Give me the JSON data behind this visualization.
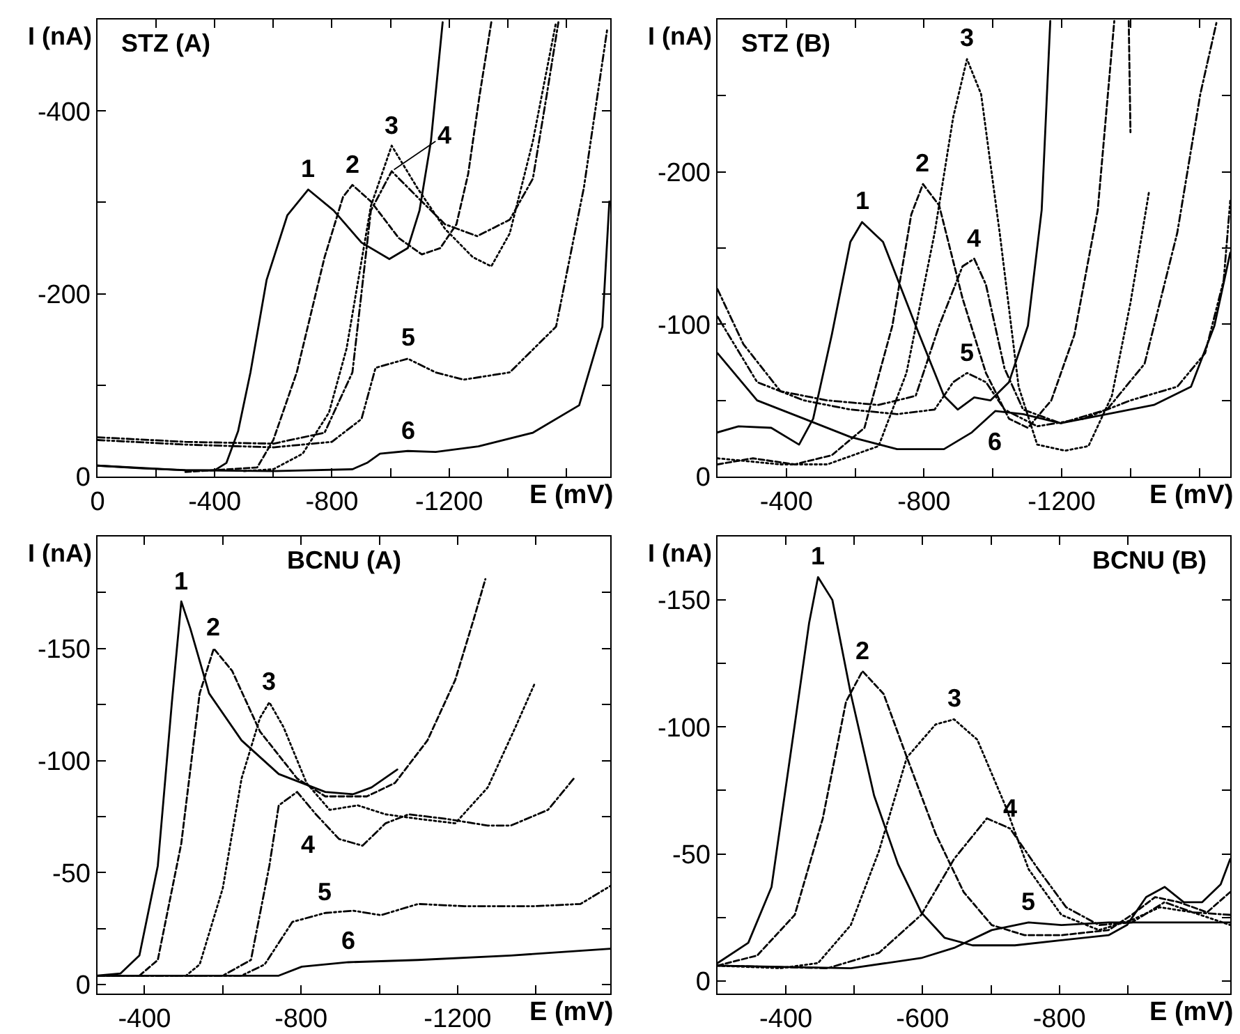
{
  "chart_data": [
    {
      "type": "line",
      "title": "STZ (A)",
      "xlabel": "E (mV)",
      "ylabel": "I (nA)",
      "xlim": [
        0,
        -1750
      ],
      "ylim": [
        0,
        -500
      ],
      "xticks": [
        0,
        {
          "value": -200,
          "label": null
        },
        -400,
        {
          "value": -600,
          "label": null
        },
        -800,
        {
          "value": -1000,
          "label": null
        },
        -1200,
        {
          "value": -1400,
          "label": null
        },
        {
          "value": -1600,
          "label": null
        }
      ],
      "yticks": [
        0,
        {
          "value": -100,
          "label": null
        },
        -200,
        {
          "value": -300,
          "label": null
        },
        -400
      ],
      "grid": false,
      "series": [
        {
          "color": "#000000",
          "line_style": "solid",
          "x": [
            0,
            -150,
            -300,
            -400,
            -440,
            -480,
            -522,
            -577,
            -648,
            -719,
            -806,
            -901,
            -996,
            -1059,
            -1099,
            -1138,
            -1178
          ],
          "values": [
            -12,
            -9,
            -7,
            -7,
            -15,
            -50,
            -114,
            -215,
            -286,
            -314,
            -291,
            -256,
            -238,
            -250,
            -291,
            -367,
            -497
          ]
        },
        {
          "color": "#000000",
          "line_style": "dashed",
          "x": [
            -300,
            -450,
            -545,
            -600,
            -680,
            -775,
            -838,
            -870,
            -933,
            -1028,
            -1107,
            -1170,
            -1225,
            -1265,
            -1304,
            -1344
          ],
          "values": [
            -5,
            -8,
            -10,
            -40,
            -114,
            -240,
            -306,
            -319,
            -301,
            -261,
            -243,
            -250,
            -276,
            -331,
            -417,
            -497
          ]
        },
        {
          "color": "#000000",
          "line_style": "dotted",
          "x": [
            -500,
            -600,
            -700,
            -790,
            -850,
            -933,
            -1004,
            -1091,
            -1186,
            -1281,
            -1344,
            -1407,
            -1486,
            -1565
          ],
          "values": [
            -6,
            -8,
            -25,
            -70,
            -140,
            -296,
            -362,
            -316,
            -271,
            -240,
            -230,
            -266,
            -367,
            -497
          ]
        },
        {
          "color": "#000000",
          "line_style": "dashdot",
          "x": [
            0,
            -300,
            -600,
            -775,
            -870,
            -933,
            -1004,
            -1091,
            -1186,
            -1296,
            -1407,
            -1486,
            -1533,
            -1573
          ],
          "values": [
            -43,
            -38,
            -36,
            -48,
            -114,
            -291,
            -334,
            -306,
            -276,
            -263,
            -281,
            -326,
            -417,
            -497
          ]
        },
        {
          "color": "#000000",
          "line_style": "dashdotdot",
          "x": [
            0,
            -300,
            -600,
            -800,
            -901,
            -949,
            -1059,
            -1154,
            -1249,
            -1407,
            -1565,
            -1660,
            -1739
          ],
          "values": [
            -40,
            -35,
            -32,
            -38,
            -63,
            -119,
            -129,
            -114,
            -106,
            -114,
            -164,
            -316,
            -488
          ]
        },
        {
          "color": "#000000",
          "line_style": "solid",
          "x": [
            0,
            -300,
            -600,
            -870,
            -920,
            -964,
            -1059,
            -1154,
            -1300,
            -1486,
            -1644,
            -1723,
            -1747
          ],
          "values": [
            -12,
            -7,
            -6,
            -8,
            -15,
            -25,
            -28,
            -27,
            -33,
            -48,
            -78,
            -164,
            -301
          ]
        }
      ],
      "annotations": [
        {
          "text": "1",
          "x": -719,
          "y": -314
        },
        {
          "text": "2",
          "x": -870,
          "y": -319
        },
        {
          "text": "3",
          "x": -1004,
          "y": -362
        },
        {
          "text": "4",
          "x": -1004,
          "y": -334
        },
        {
          "text": "5",
          "x": -1059,
          "y": -129
        },
        {
          "text": "6",
          "x": -1059,
          "y": -28
        }
      ]
    },
    {
      "type": "line",
      "title": "STZ (B)",
      "xlabel": "E (mV)",
      "ylabel": "I (nA)",
      "xlim": [
        -200,
        -1690
      ],
      "ylim": [
        0,
        -300
      ],
      "xticks": [
        -400,
        {
          "value": -600,
          "label": null
        },
        -800,
        {
          "value": -1000,
          "label": null
        },
        -1200,
        {
          "value": -1400,
          "label": null
        },
        {
          "value": -1600,
          "label": null
        }
      ],
      "yticks": [
        0,
        {
          "value": -50,
          "label": null
        },
        -100,
        {
          "value": -150,
          "label": null
        },
        -200,
        {
          "value": -250,
          "label": null
        }
      ],
      "grid": false,
      "series": [
        {
          "color": "#000000",
          "line_style": "solid",
          "x": [
            -200,
            -261,
            -356,
            -437,
            -478,
            -532,
            -586,
            -620,
            -681,
            -776,
            -858,
            -898,
            -946,
            -993,
            -1047,
            -1102,
            -1142,
            -1167
          ],
          "values": [
            -29,
            -33,
            -32,
            -21,
            -38,
            -93,
            -154,
            -167,
            -154,
            -99,
            -53,
            -44,
            -52,
            -50,
            -62,
            -99,
            -175,
            -299
          ]
        },
        {
          "color": "#000000",
          "line_style": "dashed",
          "x": [
            -200,
            -302,
            -424,
            -532,
            -627,
            -708,
            -763,
            -797,
            -844,
            -912,
            -980,
            -1047,
            -1102,
            -1170,
            -1237,
            -1305,
            -1353,
            -1380,
            -1395,
            -1400
          ],
          "values": [
            -8,
            -12,
            -8,
            -14,
            -32,
            -99,
            -172,
            -192,
            -178,
            -117,
            -68,
            -38,
            -32,
            -50,
            -93,
            -175,
            -299,
            null,
            -299,
            -226
          ]
        },
        {
          "color": "#000000",
          "line_style": "dotted",
          "x": [
            -200,
            -383,
            -519,
            -668,
            -749,
            -831,
            -885,
            -925,
            -966,
            -1020,
            -1075,
            -1129,
            -1210,
            -1278,
            -1346,
            -1400,
            -1454
          ],
          "values": [
            -12,
            -8,
            -8,
            -20,
            -68,
            -160,
            -236,
            -274,
            -251,
            -160,
            -59,
            -21,
            -17,
            -20,
            -53,
            -114,
            -187
          ]
        },
        {
          "color": "#000000",
          "line_style": "dashdot",
          "x": [
            -200,
            -275,
            -383,
            -519,
            -668,
            -776,
            -844,
            -912,
            -946,
            -980,
            -1034,
            -1088,
            -1197,
            -1332,
            -1441,
            -1536,
            -1603,
            -1651
          ],
          "values": [
            -123,
            -87,
            -56,
            -50,
            -47,
            -53,
            -99,
            -138,
            -143,
            -126,
            -71,
            -44,
            -35,
            -44,
            -74,
            -160,
            -251,
            -299
          ]
        },
        {
          "color": "#000000",
          "line_style": "dashdotdot",
          "x": [
            -200,
            -315,
            -451,
            -586,
            -722,
            -831,
            -885,
            -925,
            -980,
            -1034,
            -1129,
            -1264,
            -1400,
            -1536,
            -1617,
            -1671,
            -1690
          ],
          "values": [
            -105,
            -62,
            -50,
            -44,
            -41,
            -44,
            -62,
            -68,
            -62,
            -44,
            -33,
            -38,
            -50,
            -59,
            -81,
            -129,
            -181
          ]
        },
        {
          "color": "#000000",
          "line_style": "solid",
          "x": [
            -200,
            -315,
            -451,
            -586,
            -722,
            -858,
            -939,
            -1007,
            -1088,
            -1197,
            -1332,
            -1468,
            -1576,
            -1644,
            -1690
          ],
          "values": [
            -81,
            -50,
            -38,
            -26,
            -18,
            -18,
            -29,
            -43,
            -41,
            -35,
            -41,
            -47,
            -59,
            -99,
            -147
          ]
        }
      ],
      "annotations": [
        {
          "text": "1",
          "x": -620,
          "y": -167
        },
        {
          "text": "2",
          "x": -797,
          "y": -192
        },
        {
          "text": "3",
          "x": -925,
          "y": -274
        },
        {
          "text": "4",
          "x": -946,
          "y": -143
        },
        {
          "text": "5",
          "x": -925,
          "y": -68
        },
        {
          "text": "6",
          "x": -1007,
          "y": -43
        }
      ]
    },
    {
      "type": "line",
      "title": "BCNU (A)",
      "xlabel": "E (mV)",
      "ylabel": "I (nA)",
      "xlim": [
        -280,
        -1590
      ],
      "ylim": [
        4,
        -200
      ],
      "xticks": [
        -400,
        {
          "value": -600,
          "label": null
        },
        -800,
        {
          "value": -1000,
          "label": null
        },
        -1200,
        {
          "value": -1400,
          "label": null
        }
      ],
      "yticks": [
        0,
        {
          "value": -25,
          "label": null
        },
        -50,
        {
          "value": -75,
          "label": null
        },
        -100,
        {
          "value": -125,
          "label": null
        },
        -150,
        {
          "value": -175,
          "label": null
        }
      ],
      "grid": false,
      "series": [
        {
          "color": "#000000",
          "line_style": "solid",
          "x": [
            -280,
            -339,
            -387,
            -434,
            -470,
            -494,
            -517,
            -565,
            -648,
            -743,
            -862,
            -933,
            -980,
            -1046
          ],
          "values": [
            -4,
            -5,
            -13,
            -53,
            -126,
            -171,
            -159,
            -130,
            -109,
            -94,
            -86,
            -85,
            -88,
            -96
          ]
        },
        {
          "color": "#000000",
          "line_style": "dashed",
          "x": [
            -280,
            -387,
            -434,
            -494,
            -541,
            -577,
            -624,
            -695,
            -790,
            -862,
            -968,
            -1040,
            -1123,
            -1194,
            -1241,
            -1271
          ],
          "values": [
            -4,
            -4,
            -11,
            -63,
            -130,
            -150,
            -140,
            -113,
            -92,
            -84,
            -84,
            -90,
            -109,
            -136,
            -163,
            -181
          ]
        },
        {
          "color": "#000000",
          "line_style": "dotted",
          "x": [
            -280,
            -506,
            -541,
            -600,
            -648,
            -695,
            -719,
            -755,
            -814,
            -873,
            -945,
            -1016,
            -1099,
            -1194,
            -1277,
            -1348,
            -1396
          ],
          "values": [
            -4,
            -4,
            -9,
            -43,
            -92,
            -119,
            -126,
            -115,
            -90,
            -78,
            -80,
            -76,
            -74,
            -72,
            -88,
            -115,
            -134
          ]
        },
        {
          "color": "#000000",
          "line_style": "dashdot",
          "x": [
            -280,
            -600,
            -672,
            -719,
            -743,
            -790,
            -838,
            -897,
            -957,
            -1016,
            -1075,
            -1170,
            -1277,
            -1336,
            -1431,
            -1497
          ],
          "values": [
            -4,
            -4,
            -11,
            -53,
            -80,
            -86,
            -76,
            -65,
            -62,
            -72,
            -76,
            -74,
            -71,
            -71,
            -78,
            -92
          ]
        },
        {
          "color": "#000000",
          "line_style": "dashdotdot",
          "x": [
            -280,
            -648,
            -707,
            -778,
            -862,
            -933,
            -1004,
            -1099,
            -1218,
            -1396,
            -1514,
            -1590
          ],
          "values": [
            -4,
            -4,
            -9,
            -28,
            -32,
            -33,
            -31,
            -36,
            -35,
            -35,
            -36,
            -44
          ]
        },
        {
          "color": "#000000",
          "line_style": "solid",
          "x": [
            -280,
            -624,
            -743,
            -802,
            -921,
            -1099,
            -1336,
            -1590
          ],
          "values": [
            -4,
            -4,
            -4,
            -8,
            -10,
            -11,
            -13,
            -16
          ]
        }
      ],
      "annotations": [
        {
          "text": "1",
          "x": -494,
          "y": -171
        },
        {
          "text": "2",
          "x": -577,
          "y": -150
        },
        {
          "text": "3",
          "x": -719,
          "y": -126
        },
        {
          "text": "4",
          "x": -790,
          "y": -86
        },
        {
          "text": "5",
          "x": -862,
          "y": -32
        },
        {
          "text": "6",
          "x": -921,
          "y": -10
        }
      ]
    },
    {
      "type": "line",
      "title": "BCNU (B)",
      "xlabel": "E (mV)",
      "ylabel": "I (nA)",
      "xlim": [
        -300,
        -1050
      ],
      "ylim": [
        5,
        -175
      ],
      "xticks": [
        -400,
        {
          "value": -500,
          "label": null
        },
        -600,
        {
          "value": -700,
          "label": null
        },
        -800,
        {
          "value": -900,
          "label": null
        }
      ],
      "yticks": [
        0,
        {
          "value": -25,
          "label": null
        },
        -50,
        {
          "value": -75,
          "label": null
        },
        -100,
        {
          "value": -125,
          "label": null
        },
        -150
      ],
      "grid": false,
      "series": [
        {
          "color": "#000000",
          "line_style": "solid",
          "x": [
            -300,
            -345,
            -379,
            -413,
            -434,
            -447,
            -468,
            -495,
            -529,
            -564,
            -598,
            -632,
            -673,
            -735,
            -803,
            -872,
            -899,
            -927,
            -954,
            -982,
            -1009,
            -1036,
            -1050
          ],
          "values": [
            -7,
            -15,
            -37,
            -101,
            -141,
            -159,
            -150,
            -113,
            -73,
            -46,
            -27,
            -17,
            -14,
            -14,
            -16,
            -18,
            -22,
            -33,
            -37,
            -31,
            -31,
            -38,
            -48
          ]
        },
        {
          "color": "#000000",
          "line_style": "dashed",
          "x": [
            -300,
            -358,
            -413,
            -454,
            -488,
            -512,
            -543,
            -577,
            -619,
            -660,
            -701,
            -749,
            -803,
            -872,
            -906,
            -940,
            -975,
            -1016,
            -1050
          ],
          "values": [
            -6,
            -10,
            -26,
            -64,
            -110,
            -122,
            -113,
            -88,
            -58,
            -35,
            -22,
            -18,
            -18,
            -20,
            -26,
            -33,
            -31,
            -27,
            -35
          ]
        },
        {
          "color": "#000000",
          "line_style": "dotted",
          "x": [
            -300,
            -392,
            -447,
            -495,
            -536,
            -577,
            -619,
            -646,
            -680,
            -721,
            -755,
            -803,
            -858,
            -906,
            -947,
            -995,
            -1050
          ],
          "values": [
            -6,
            -5,
            -7,
            -22,
            -51,
            -88,
            -101,
            -103,
            -95,
            -69,
            -44,
            -26,
            -20,
            -24,
            -29,
            -27,
            -22
          ]
        },
        {
          "color": "#000000",
          "line_style": "dashdot",
          "x": [
            -300,
            -461,
            -536,
            -598,
            -646,
            -694,
            -728,
            -769,
            -810,
            -858,
            -906,
            -954,
            -995,
            -1050
          ],
          "values": [
            -6,
            -5,
            -11,
            -26,
            -48,
            -64,
            -60,
            -44,
            -29,
            -22,
            -23,
            -31,
            -27,
            -26
          ]
        },
        {
          "color": "#000000",
          "line_style": "solid",
          "x": [
            -300,
            -495,
            -598,
            -646,
            -701,
            -755,
            -803,
            -872,
            -975,
            -1050
          ],
          "values": [
            -6,
            -5,
            -9,
            -13,
            -20,
            -23,
            -22,
            -23,
            -23,
            -23
          ]
        }
      ],
      "annotations": [
        {
          "text": "1",
          "x": -447,
          "y": -159
        },
        {
          "text": "2",
          "x": -512,
          "y": -122
        },
        {
          "text": "3",
          "x": -646,
          "y": -103
        },
        {
          "text": "4",
          "x": -728,
          "y": -60
        },
        {
          "text": "5",
          "x": -755,
          "y": -23
        }
      ]
    }
  ]
}
